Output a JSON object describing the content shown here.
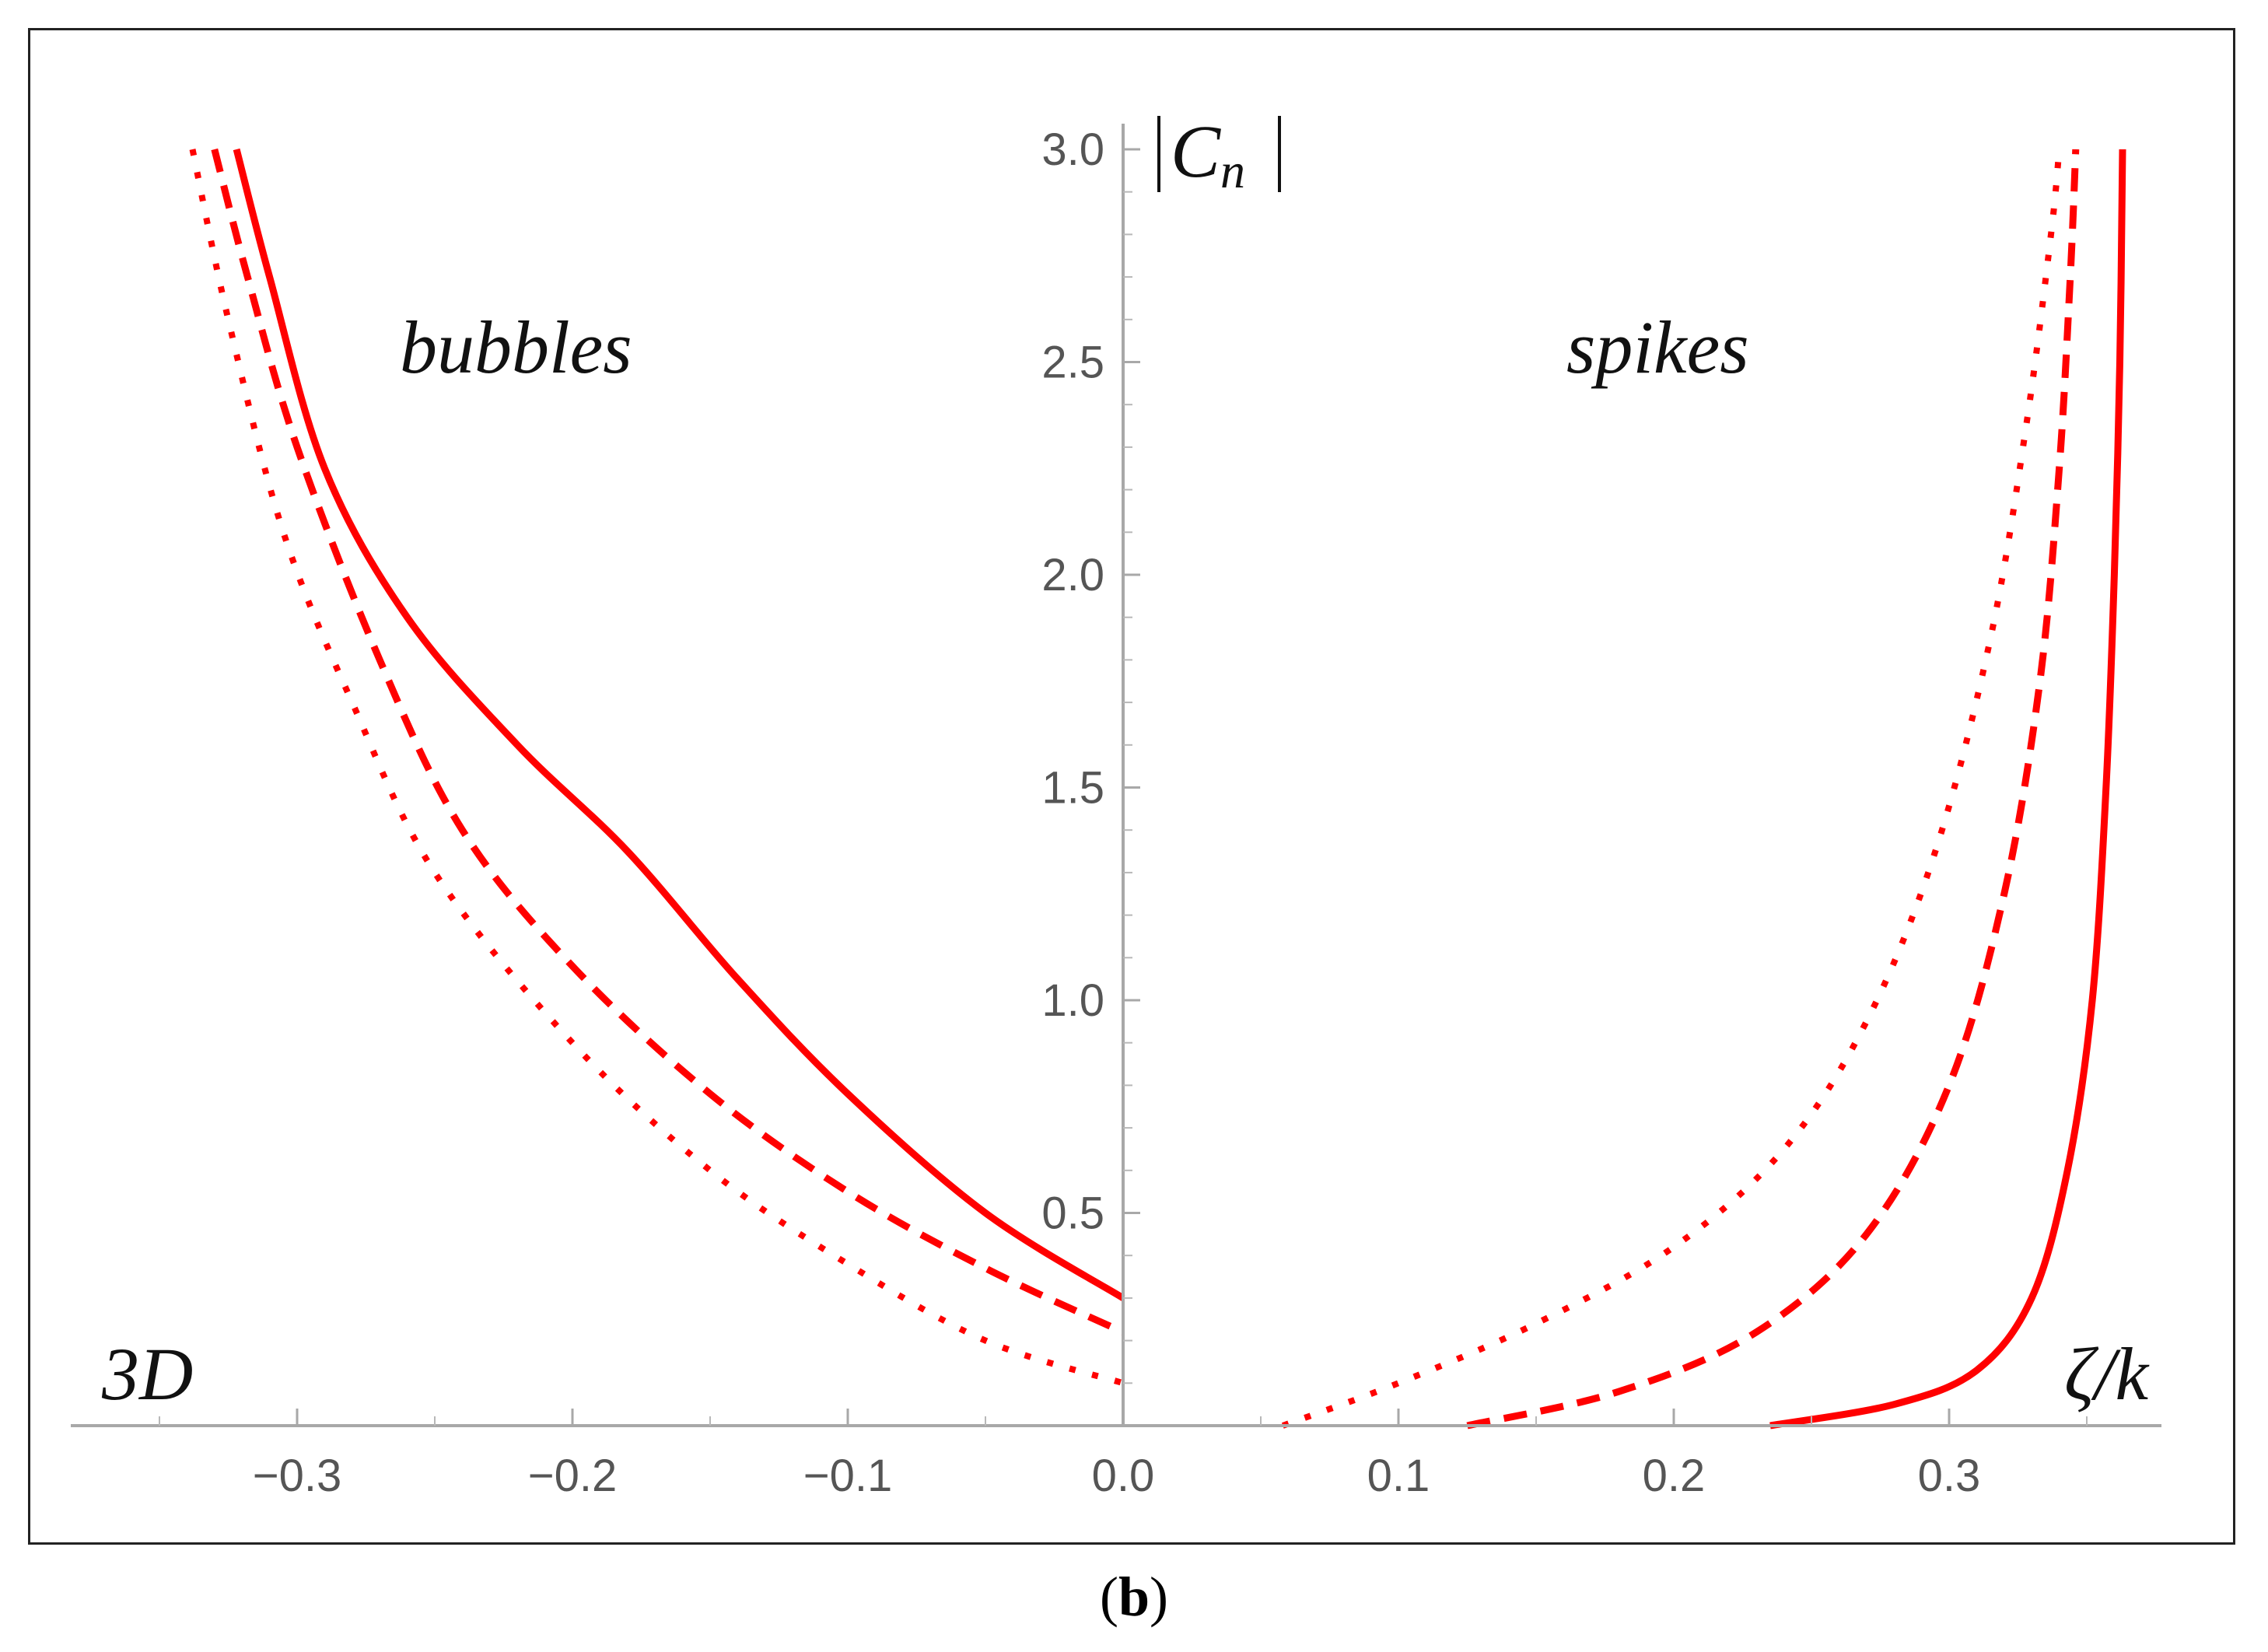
{
  "chart_data": {
    "type": "line",
    "panel_label": "3D",
    "xlabel": "ζ/k",
    "ylabel": "|Cn|",
    "ylabel_main": "C",
    "ylabel_sub": "n",
    "xlim": [
      -0.38,
      0.38
    ],
    "ylim": [
      0,
      3.0
    ],
    "xticks": [
      -0.3,
      -0.2,
      -0.1,
      0.0,
      0.1,
      0.2,
      0.3
    ],
    "xtick_labels": [
      "−0.3",
      "−0.2",
      "−0.1",
      "0.0",
      "0.1",
      "0.2",
      "0.3"
    ],
    "yticks": [
      0.5,
      1.0,
      1.5,
      2.0,
      2.5,
      3.0
    ],
    "ytick_labels": [
      "0.5",
      "1.0",
      "1.5",
      "2.0",
      "2.5",
      "3.0"
    ],
    "annotations": {
      "left": "bubbles",
      "right": "spikes"
    },
    "color": "#ff0000",
    "series": [
      {
        "name": "solid",
        "style": "solid",
        "bubbles": [
          [
            -0.322,
            3.0
          ],
          [
            -0.31,
            2.7
          ],
          [
            -0.29,
            2.25
          ],
          [
            -0.26,
            1.9
          ],
          [
            -0.22,
            1.6
          ],
          [
            -0.18,
            1.35
          ],
          [
            -0.14,
            1.05
          ],
          [
            -0.1,
            0.78
          ],
          [
            -0.05,
            0.5
          ],
          [
            0.0,
            0.3
          ]
        ],
        "spikes": [
          [
            0.235,
            0.0
          ],
          [
            0.28,
            0.05
          ],
          [
            0.31,
            0.13
          ],
          [
            0.33,
            0.3
          ],
          [
            0.343,
            0.6
          ],
          [
            0.352,
            1.0
          ],
          [
            0.357,
            1.5
          ],
          [
            0.36,
            2.0
          ],
          [
            0.362,
            2.5
          ],
          [
            0.363,
            3.0
          ]
        ]
      },
      {
        "name": "dashed",
        "style": "dashed",
        "bubbles": [
          [
            -0.33,
            3.0
          ],
          [
            -0.318,
            2.7
          ],
          [
            -0.3,
            2.3
          ],
          [
            -0.27,
            1.8
          ],
          [
            -0.24,
            1.4
          ],
          [
            -0.2,
            1.08
          ],
          [
            -0.15,
            0.78
          ],
          [
            -0.1,
            0.55
          ],
          [
            -0.05,
            0.37
          ],
          [
            0.0,
            0.22
          ]
        ],
        "spikes": [
          [
            0.125,
            0.0
          ],
          [
            0.18,
            0.08
          ],
          [
            0.23,
            0.22
          ],
          [
            0.27,
            0.45
          ],
          [
            0.3,
            0.8
          ],
          [
            0.32,
            1.25
          ],
          [
            0.333,
            1.75
          ],
          [
            0.34,
            2.25
          ],
          [
            0.344,
            2.7
          ],
          [
            0.346,
            3.0
          ]
        ]
      },
      {
        "name": "dotted",
        "style": "dotted",
        "bubbles": [
          [
            -0.338,
            3.0
          ],
          [
            -0.325,
            2.6
          ],
          [
            -0.305,
            2.1
          ],
          [
            -0.28,
            1.7
          ],
          [
            -0.25,
            1.3
          ],
          [
            -0.2,
            0.9
          ],
          [
            -0.15,
            0.6
          ],
          [
            -0.1,
            0.38
          ],
          [
            -0.05,
            0.2
          ],
          [
            0.0,
            0.1
          ]
        ],
        "spikes": [
          [
            0.058,
            0.0
          ],
          [
            0.1,
            0.1
          ],
          [
            0.15,
            0.24
          ],
          [
            0.2,
            0.42
          ],
          [
            0.24,
            0.65
          ],
          [
            0.27,
            0.95
          ],
          [
            0.295,
            1.35
          ],
          [
            0.315,
            1.85
          ],
          [
            0.328,
            2.35
          ],
          [
            0.337,
            2.8
          ],
          [
            0.34,
            3.0
          ]
        ]
      }
    ]
  },
  "caption": {
    "open": "(",
    "letter": "b",
    "close": ")"
  }
}
